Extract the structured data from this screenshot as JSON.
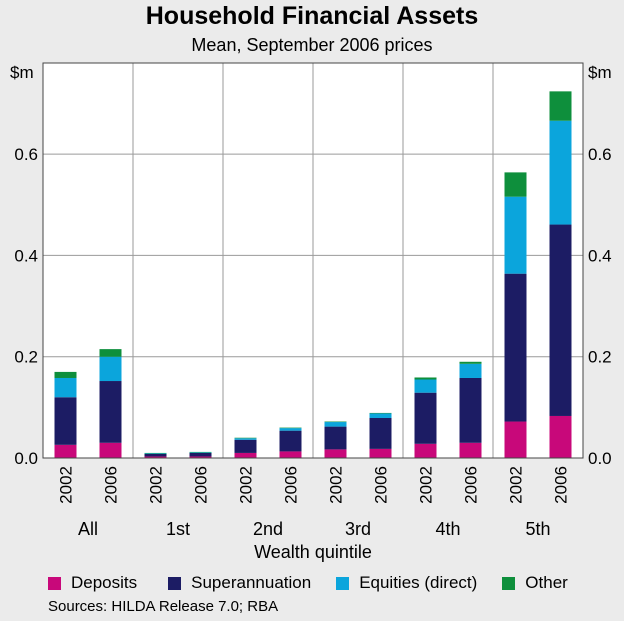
{
  "chart_data": {
    "type": "bar",
    "stacked": true,
    "title": "Household Financial Assets",
    "subtitle": "Mean, September 2006 prices",
    "y_unit_label": "$m",
    "xlabel": "Wealth quintile",
    "ylim": [
      0,
      0.78
    ],
    "y_ticks": [
      "0.0",
      "0.2",
      "0.4",
      "0.6"
    ],
    "y_tick_values": [
      0,
      0.2,
      0.4,
      0.6
    ],
    "groups": [
      {
        "label": "All",
        "bars": [
          {
            "year": "2002",
            "values": [
              0.026,
              0.094,
              0.038,
              0.012
            ]
          },
          {
            "year": "2006",
            "values": [
              0.03,
              0.122,
              0.048,
              0.015
            ]
          }
        ]
      },
      {
        "label": "1st",
        "bars": [
          {
            "year": "2002",
            "values": [
              0.003,
              0.005,
              0.001,
              0.001
            ]
          },
          {
            "year": "2006",
            "values": [
              0.003,
              0.007,
              0.001,
              0.001
            ]
          }
        ]
      },
      {
        "label": "2nd",
        "bars": [
          {
            "year": "2002",
            "values": [
              0.01,
              0.026,
              0.003,
              0.001
            ]
          },
          {
            "year": "2006",
            "values": [
              0.013,
              0.041,
              0.005,
              0.001
            ]
          }
        ]
      },
      {
        "label": "3rd",
        "bars": [
          {
            "year": "2002",
            "values": [
              0.017,
              0.045,
              0.009,
              0.001
            ]
          },
          {
            "year": "2006",
            "values": [
              0.018,
              0.061,
              0.009,
              0.001
            ]
          }
        ]
      },
      {
        "label": "4th",
        "bars": [
          {
            "year": "2002",
            "values": [
              0.028,
              0.101,
              0.026,
              0.004
            ]
          },
          {
            "year": "2006",
            "values": [
              0.03,
              0.128,
              0.028,
              0.004
            ]
          }
        ]
      },
      {
        "label": "5th",
        "bars": [
          {
            "year": "2002",
            "values": [
              0.072,
              0.292,
              0.152,
              0.048
            ]
          },
          {
            "year": "2006",
            "values": [
              0.083,
              0.378,
              0.205,
              0.058
            ]
          }
        ]
      }
    ],
    "series": [
      {
        "name": "Deposits",
        "color": "#c8087a"
      },
      {
        "name": "Superannuation",
        "color": "#1c1c64"
      },
      {
        "name": "Equities (direct)",
        "color": "#0ba5dc"
      },
      {
        "name": "Other",
        "color": "#0e8f3c"
      }
    ],
    "grid": true,
    "legend_position": "bottom"
  },
  "source_note": "Sources: HILDA Release 7.0; RBA"
}
